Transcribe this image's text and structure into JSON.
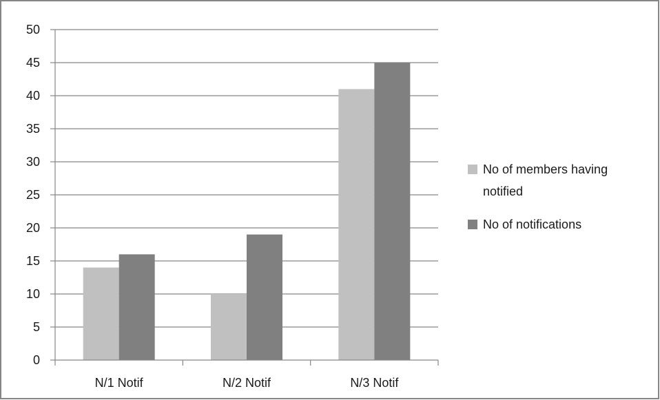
{
  "chart_data": {
    "type": "bar",
    "title": "",
    "xlabel": "",
    "ylabel": "",
    "categories": [
      "N/1 Notif",
      "N/2 Notif",
      "N/3 Notif"
    ],
    "series": [
      {
        "name": "No of members having notified",
        "values": [
          14,
          10,
          41
        ],
        "color": "#c0c0c0"
      },
      {
        "name": "No of notifications",
        "values": [
          16,
          19,
          45
        ],
        "color": "#808080"
      }
    ],
    "ylim": [
      0,
      50
    ],
    "yticks": [
      0,
      5,
      10,
      15,
      20,
      25,
      30,
      35,
      40,
      45,
      50
    ],
    "grid": true,
    "legend": "right",
    "colors": {
      "gridline": "#868686",
      "axis": "#868686",
      "border": "#868686",
      "text": "#1a1a1a"
    }
  }
}
